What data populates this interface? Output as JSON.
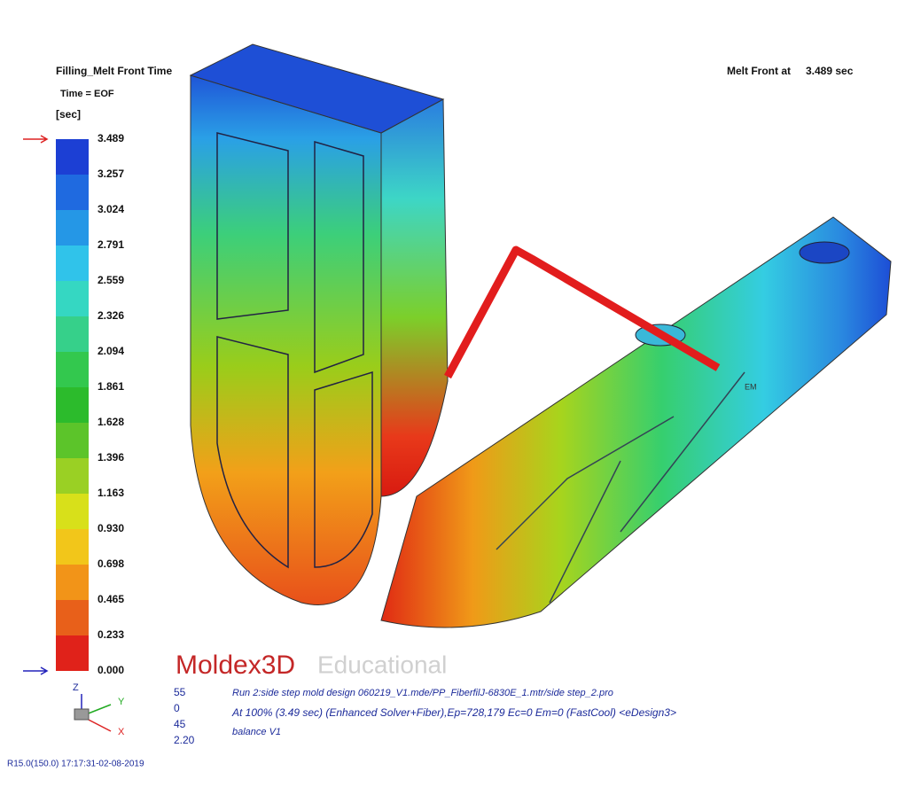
{
  "legend": {
    "title": "Filling_Melt Front Time",
    "subtitle": "Time = EOF",
    "unit": "[sec]",
    "ticks": [
      "3.489",
      "3.257",
      "3.024",
      "2.791",
      "2.559",
      "2.326",
      "2.094",
      "1.861",
      "1.628",
      "1.396",
      "1.163",
      "0.930",
      "0.698",
      "0.465",
      "0.233",
      "0.000"
    ]
  },
  "status": {
    "label": "Melt Front at",
    "value": "3.489 sec"
  },
  "marker": "EM",
  "logo": {
    "brand": "Moldex3D",
    "edition": "Educational"
  },
  "view": {
    "values": [
      "55",
      "0",
      "45",
      "2.20"
    ],
    "lines": [
      "Run 2:side step mold design 060219_V1.mde/PP_FiberfilJ-6830E_1.mtr/side step_2.pro",
      "At 100% (3.49 sec) (Enhanced Solver+Fiber),Ep=728,179 Ec=0 Em=0 (FastCool) <eDesign3>",
      "balance V1"
    ]
  },
  "axes": {
    "z": "Z",
    "y": "Y",
    "x": "X"
  },
  "footer": "R15.0(150.0) 17:17:31-02-08-2019"
}
